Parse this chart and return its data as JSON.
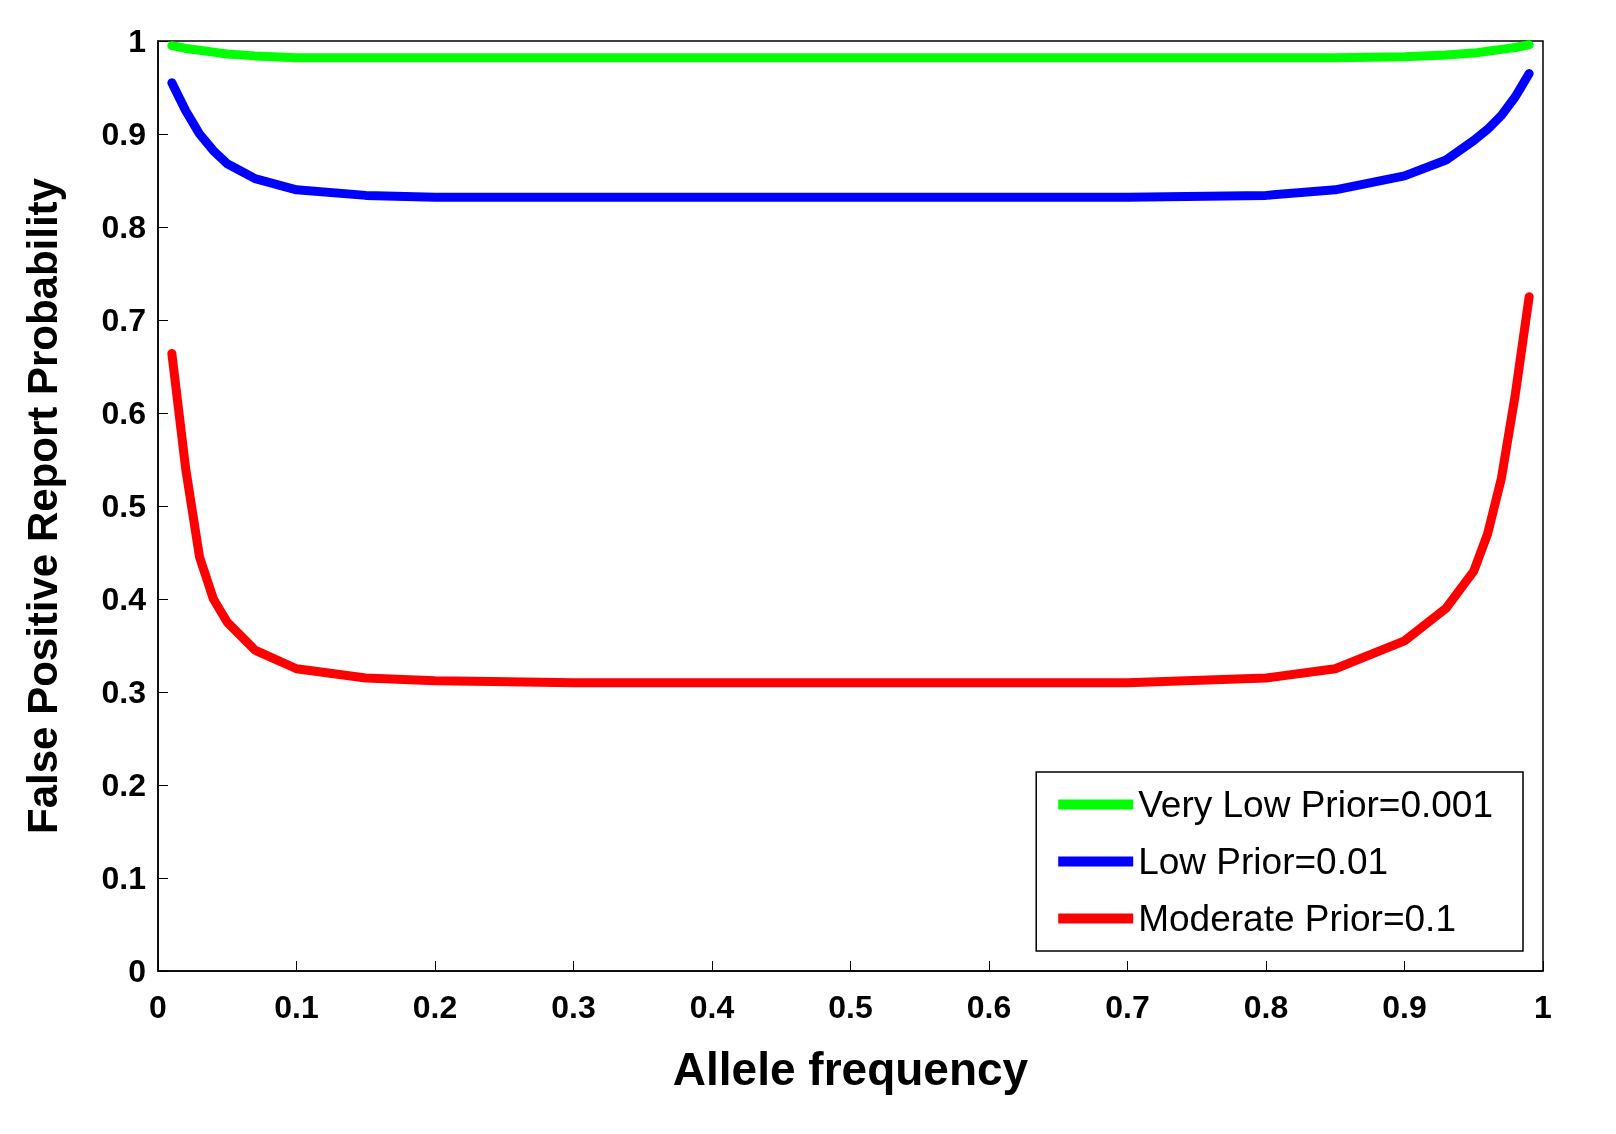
{
  "chart_data": {
    "type": "line",
    "xlabel": "Allele frequency",
    "ylabel": "False Positive Report Probability",
    "xlim": [
      0,
      1
    ],
    "ylim": [
      0,
      1
    ],
    "xticks": [
      0,
      0.1,
      0.2,
      0.3,
      0.4,
      0.5,
      0.6,
      0.7,
      0.8,
      0.9,
      1
    ],
    "yticks": [
      0,
      0.1,
      0.2,
      0.3,
      0.4,
      0.5,
      0.6,
      0.7,
      0.8,
      0.9,
      1
    ],
    "grid": false,
    "legend": "bottom right",
    "line_style": "solid",
    "x": [
      0.01,
      0.02,
      0.03,
      0.04,
      0.05,
      0.07,
      0.1,
      0.15,
      0.2,
      0.3,
      0.4,
      0.5,
      0.6,
      0.7,
      0.8,
      0.85,
      0.9,
      0.93,
      0.95,
      0.96,
      0.97,
      0.98,
      0.99
    ],
    "series": [
      {
        "name": "Very Low Prior=0.001",
        "color": "#00ff00",
        "values": [
          0.995,
          0.992,
          0.99,
          0.988,
          0.986,
          0.984,
          0.982,
          0.982,
          0.982,
          0.982,
          0.982,
          0.982,
          0.982,
          0.982,
          0.982,
          0.982,
          0.983,
          0.985,
          0.987,
          0.989,
          0.991,
          0.993,
          0.996
        ]
      },
      {
        "name": "Low Prior=0.01",
        "color": "#0000ff",
        "values": [
          0.955,
          0.925,
          0.9,
          0.882,
          0.868,
          0.852,
          0.84,
          0.834,
          0.832,
          0.832,
          0.832,
          0.832,
          0.832,
          0.832,
          0.834,
          0.84,
          0.855,
          0.872,
          0.893,
          0.905,
          0.92,
          0.94,
          0.965
        ]
      },
      {
        "name": "Moderate Prior=0.1",
        "color": "#ff0000",
        "values": [
          0.664,
          0.54,
          0.445,
          0.4,
          0.375,
          0.345,
          0.325,
          0.315,
          0.312,
          0.31,
          0.31,
          0.31,
          0.31,
          0.31,
          0.315,
          0.325,
          0.355,
          0.39,
          0.43,
          0.47,
          0.53,
          0.62,
          0.725
        ]
      }
    ]
  }
}
